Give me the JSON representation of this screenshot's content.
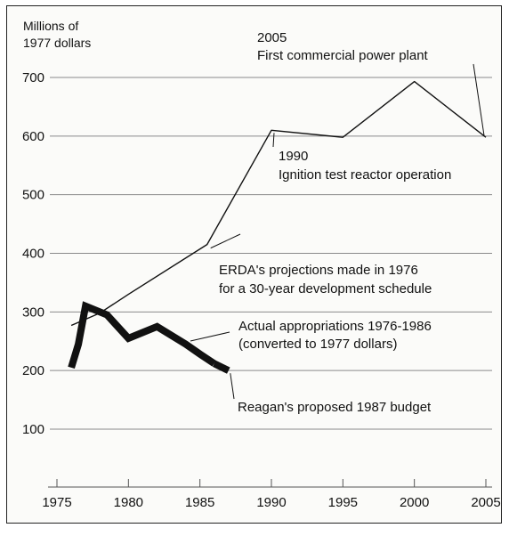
{
  "chart_data": {
    "type": "line",
    "ylabel": [
      "Millions of",
      "1977 dollars"
    ],
    "xlim": [
      1975,
      2005
    ],
    "ylim": [
      100,
      700
    ],
    "yticks": [
      100,
      200,
      300,
      400,
      500,
      600,
      700
    ],
    "xticks": [
      1975,
      1980,
      1985,
      1990,
      1995,
      2000,
      2005
    ],
    "grid": "horizontal",
    "series": [
      {
        "name": "ERDA's projections made in 1976 for a 30-year development schedule",
        "style": "thin",
        "color": "#111111",
        "x": [
          1976,
          1978,
          1980,
          1985.5,
          1990,
          1995,
          2000,
          2005
        ],
        "y": [
          277,
          298,
          330,
          415,
          610,
          598,
          693,
          598
        ]
      },
      {
        "name": "Actual appropriations 1976-1986 (converted to 1977 dollars)",
        "style": "thick",
        "color": "#111111",
        "x": [
          1976,
          1976.5,
          1977,
          1978.5,
          1980,
          1982,
          1984,
          1985,
          1986
        ],
        "y": [
          205,
          245,
          310,
          295,
          255,
          275,
          245,
          228,
          212
        ]
      },
      {
        "name": "Reagan's proposed 1987 budget",
        "style": "thick",
        "color": "#111111",
        "x": [
          1986,
          1987
        ],
        "y": [
          212,
          200
        ]
      }
    ],
    "annotations": [
      {
        "key": "ann_2005",
        "lines": [
          "2005",
          "First commercial power plant"
        ]
      },
      {
        "key": "ann_1990",
        "lines": [
          "1990",
          "Ignition test reactor operation"
        ]
      },
      {
        "key": "ann_erda",
        "lines": [
          "ERDA's projections made in 1976",
          "for a 30-year development schedule"
        ]
      },
      {
        "key": "ann_actual",
        "lines": [
          "Actual appropriations 1976-1986",
          "(converted to 1977 dollars)"
        ]
      },
      {
        "key": "ann_reagan",
        "lines": [
          "Reagan's proposed 1987 budget"
        ]
      }
    ]
  }
}
